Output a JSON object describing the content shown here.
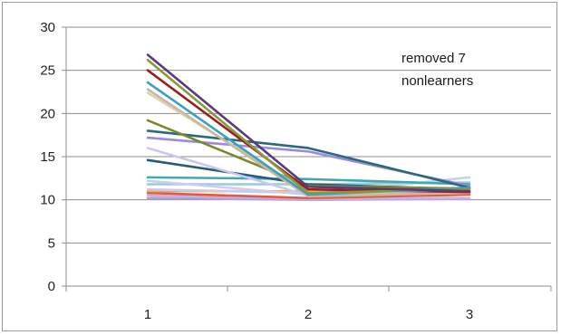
{
  "chart_data": {
    "type": "line",
    "title": "",
    "xlabel": "",
    "ylabel": "",
    "x": [
      1,
      2,
      3
    ],
    "x_tick_labels": [
      "1",
      "2",
      "3"
    ],
    "ylim": [
      0,
      30
    ],
    "y_ticks": [
      0,
      5,
      10,
      15,
      20,
      25,
      30
    ],
    "y_tick_labels": [
      "0",
      "5",
      "10",
      "15",
      "20",
      "25",
      "30"
    ],
    "grid": "horizontal",
    "legend": "none",
    "annotation": {
      "lines": [
        "removed 7",
        "nonlearners"
      ]
    },
    "series": [
      {
        "values": [
          26.8,
          11.5,
          11.0
        ],
        "color": "#5b3a7a"
      },
      {
        "values": [
          26.2,
          10.8,
          11.2
        ],
        "color": "#8a9a3a"
      },
      {
        "values": [
          25.0,
          11.2,
          10.9
        ],
        "color": "#9a2020"
      },
      {
        "values": [
          23.6,
          10.6,
          11.4
        ],
        "color": "#3aa0c0"
      },
      {
        "values": [
          22.8,
          10.4,
          10.8
        ],
        "color": "#c8b8a0"
      },
      {
        "values": [
          22.4,
          10.9,
          11.1
        ],
        "color": "#e0d0b0"
      },
      {
        "values": [
          19.2,
          11.6,
          11.3
        ],
        "color": "#7a8a2a"
      },
      {
        "values": [
          18.0,
          16.0,
          11.4
        ],
        "color": "#2a6a7a"
      },
      {
        "values": [
          16.0,
          10.5,
          11.0
        ],
        "color": "#c8c8f0"
      },
      {
        "values": [
          17.2,
          15.6,
          11.6
        ],
        "color": "#9a8ae0"
      },
      {
        "values": [
          14.6,
          11.8,
          11.2
        ],
        "color": "#2a5a7a"
      },
      {
        "values": [
          12.6,
          12.4,
          11.8
        ],
        "color": "#40a8b0"
      },
      {
        "values": [
          12.2,
          10.6,
          12.6
        ],
        "color": "#c8d0f0"
      },
      {
        "values": [
          11.8,
          11.8,
          12.0
        ],
        "color": "#a0c8d8"
      },
      {
        "values": [
          11.2,
          10.8,
          11.4
        ],
        "color": "#d0c8e8"
      },
      {
        "values": [
          11.0,
          11.0,
          11.0
        ],
        "color": "#f0a848"
      },
      {
        "values": [
          10.8,
          10.2,
          10.6
        ],
        "color": "#e05a40"
      },
      {
        "values": [
          10.5,
          10.1,
          10.2
        ],
        "color": "#c8b0e0"
      },
      {
        "values": [
          10.2,
          10.0,
          10.1
        ],
        "color": "#b0a0d8"
      }
    ]
  }
}
